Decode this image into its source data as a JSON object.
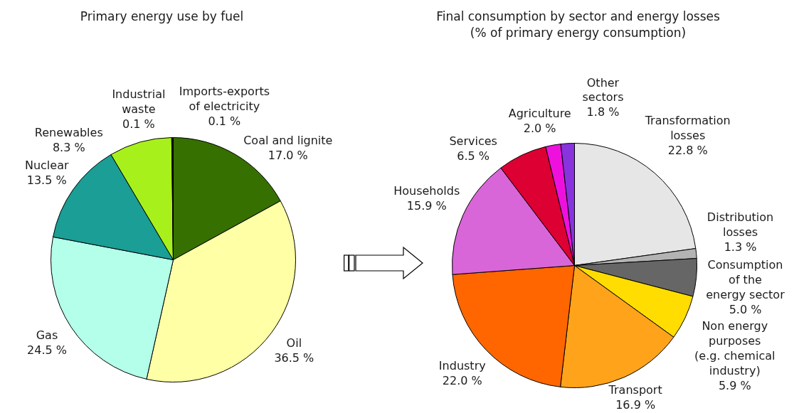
{
  "chart_data": [
    {
      "type": "pie",
      "title": "Primary energy use by fuel",
      "categories": [
        "Coal and lignite",
        "Oil",
        "Gas",
        "Nuclear",
        "Renewables",
        "Industrial\nwaste",
        "Imports-exports\nof electricity"
      ],
      "values": [
        17.0,
        36.5,
        24.5,
        13.5,
        8.3,
        0.1,
        0.1
      ],
      "colors": [
        "#367000",
        "#ffffa6",
        "#b3ffea",
        "#1a9e96",
        "#a8f01c",
        "#c00000",
        "#000000"
      ],
      "value_labels": [
        "17.0 %",
        "36.5 %",
        "24.5 %",
        "13.5 %",
        "8.3 %",
        "0.1 %",
        "0.1 %"
      ]
    },
    {
      "type": "pie",
      "title": "Final consumption by sector and energy losses",
      "subtitle": "(% of primary energy consumption)",
      "categories": [
        "Transformation\nlosses",
        "Distribution\nlosses",
        "Consumption\nof the\nenergy sector",
        "Non energy\npurposes\n(e.g. chemical\nindustry)",
        "Transport",
        "Industry",
        "Households",
        "Services",
        "Agriculture",
        "Other\nsectors"
      ],
      "values": [
        22.8,
        1.3,
        5.0,
        5.9,
        16.9,
        22.0,
        15.9,
        6.5,
        2.0,
        1.8
      ],
      "colors": [
        "#e6e6e6",
        "#b3b3b3",
        "#666666",
        "#ffdd00",
        "#ffa31a",
        "#ff6600",
        "#d966d9",
        "#dd0033",
        "#ee11dd",
        "#8833dd"
      ],
      "value_labels": [
        "22.8 %",
        "1.3 %",
        "5.0 %",
        "5.9 %",
        "16.9 %",
        "22.0 %",
        "15.9 %",
        "6.5 %",
        "2.0 %",
        "1.8 %"
      ]
    }
  ]
}
